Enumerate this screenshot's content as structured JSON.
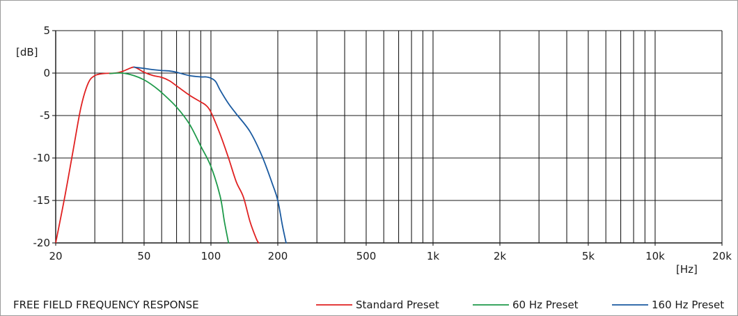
{
  "chart_data": {
    "type": "line",
    "title": "FREE FIELD FREQUENCY RESPONSE",
    "xlabel": "[Hz]",
    "ylabel": "[dB]",
    "x_scale": "log",
    "xlim": [
      20,
      20000
    ],
    "ylim": [
      -20,
      5
    ],
    "x_ticks": [
      {
        "value": 20,
        "label": "20"
      },
      {
        "value": 50,
        "label": "50"
      },
      {
        "value": 100,
        "label": "100"
      },
      {
        "value": 200,
        "label": "200"
      },
      {
        "value": 500,
        "label": "500"
      },
      {
        "value": 1000,
        "label": "1k"
      },
      {
        "value": 2000,
        "label": "2k"
      },
      {
        "value": 5000,
        "label": "5k"
      },
      {
        "value": 10000,
        "label": "10k"
      },
      {
        "value": 20000,
        "label": "20k"
      }
    ],
    "y_ticks": [
      {
        "value": 5,
        "label": "5"
      },
      {
        "value": 0,
        "label": "0"
      },
      {
        "value": -5,
        "label": "-5"
      },
      {
        "value": -10,
        "label": "-10"
      },
      {
        "value": -15,
        "label": "-15"
      },
      {
        "value": -20,
        "label": "-20"
      }
    ],
    "x_gridlines": [
      20,
      30,
      40,
      50,
      60,
      70,
      80,
      90,
      100,
      200,
      300,
      400,
      500,
      600,
      700,
      800,
      900,
      1000,
      2000,
      3000,
      4000,
      5000,
      6000,
      7000,
      8000,
      9000,
      10000,
      20000
    ],
    "y_gridlines": [
      5,
      0,
      -5,
      -10,
      -15,
      -20
    ],
    "grid": true,
    "legend_position": "bottom-right",
    "series": [
      {
        "name": "Standard Preset",
        "color": "#e02020",
        "points": [
          [
            20,
            -20
          ],
          [
            22,
            -14.5
          ],
          [
            24,
            -9
          ],
          [
            26,
            -4
          ],
          [
            28,
            -1.2
          ],
          [
            30,
            -0.3
          ],
          [
            33,
            -0.05
          ],
          [
            37,
            0
          ],
          [
            40,
            0.2
          ],
          [
            43,
            0.55
          ],
          [
            45,
            0.7
          ],
          [
            47,
            0.5
          ],
          [
            50,
            0.1
          ],
          [
            55,
            -0.3
          ],
          [
            60,
            -0.5
          ],
          [
            65,
            -0.9
          ],
          [
            70,
            -1.5
          ],
          [
            80,
            -2.6
          ],
          [
            90,
            -3.4
          ],
          [
            95,
            -3.8
          ],
          [
            100,
            -4.6
          ],
          [
            110,
            -7.2
          ],
          [
            120,
            -10
          ],
          [
            130,
            -12.8
          ],
          [
            140,
            -14.6
          ],
          [
            150,
            -17.5
          ],
          [
            160,
            -19.5
          ],
          [
            164,
            -20
          ]
        ]
      },
      {
        "name": "60 Hz Preset",
        "color": "#1e9a4a",
        "points": [
          [
            35,
            -0.05
          ],
          [
            40,
            0
          ],
          [
            45,
            -0.3
          ],
          [
            50,
            -0.8
          ],
          [
            55,
            -1.5
          ],
          [
            60,
            -2.3
          ],
          [
            70,
            -4
          ],
          [
            80,
            -6
          ],
          [
            90,
            -8.6
          ],
          [
            100,
            -11
          ],
          [
            110,
            -14.5
          ],
          [
            115,
            -17.5
          ],
          [
            120,
            -20
          ]
        ]
      },
      {
        "name": "160 Hz Preset",
        "color": "#1a5aa0",
        "points": [
          [
            45,
            0.7
          ],
          [
            50,
            0.55
          ],
          [
            55,
            0.4
          ],
          [
            60,
            0.3
          ],
          [
            65,
            0.25
          ],
          [
            70,
            0.1
          ],
          [
            80,
            -0.3
          ],
          [
            90,
            -0.45
          ],
          [
            95,
            -0.45
          ],
          [
            100,
            -0.6
          ],
          [
            105,
            -1
          ],
          [
            110,
            -2
          ],
          [
            120,
            -3.6
          ],
          [
            130,
            -4.8
          ],
          [
            150,
            -6.9
          ],
          [
            170,
            -9.8
          ],
          [
            190,
            -13.2
          ],
          [
            200,
            -15
          ],
          [
            210,
            -18
          ],
          [
            218,
            -20
          ]
        ]
      }
    ]
  }
}
